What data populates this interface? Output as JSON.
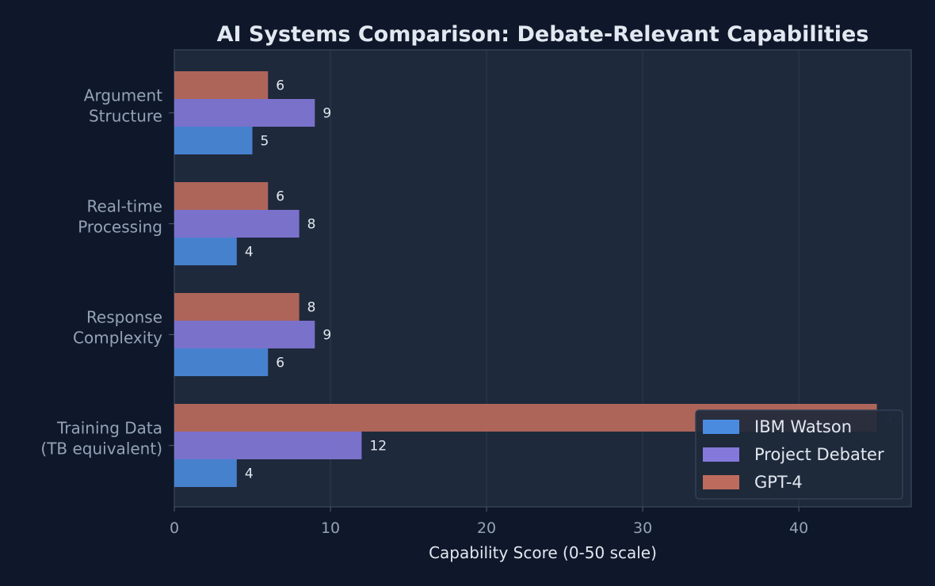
{
  "chart_data": {
    "type": "bar",
    "orientation": "horizontal",
    "title": "AI Systems Comparison: Debate-Relevant Capabilities",
    "xlabel": "Capability Score (0-50 scale)",
    "categories": [
      [
        "Argument",
        "Structure"
      ],
      [
        "Real-time",
        "Processing"
      ],
      [
        "Response",
        "Complexity"
      ],
      [
        "Training Data",
        "(TB equivalent)"
      ]
    ],
    "series": [
      {
        "name": "IBM Watson",
        "color": "#4a8bdf",
        "values": [
          5,
          4,
          6,
          4
        ]
      },
      {
        "name": "Project Debater",
        "color": "#8479db",
        "values": [
          9,
          8,
          9,
          12
        ]
      },
      {
        "name": "GPT-4",
        "color": "#bd6b5d",
        "values": [
          6,
          6,
          8,
          45
        ]
      }
    ],
    "xlim": [
      0,
      47.2
    ],
    "xticks": [
      0,
      10,
      20,
      30,
      40
    ],
    "grid": true,
    "legend_position": "lower-right"
  }
}
